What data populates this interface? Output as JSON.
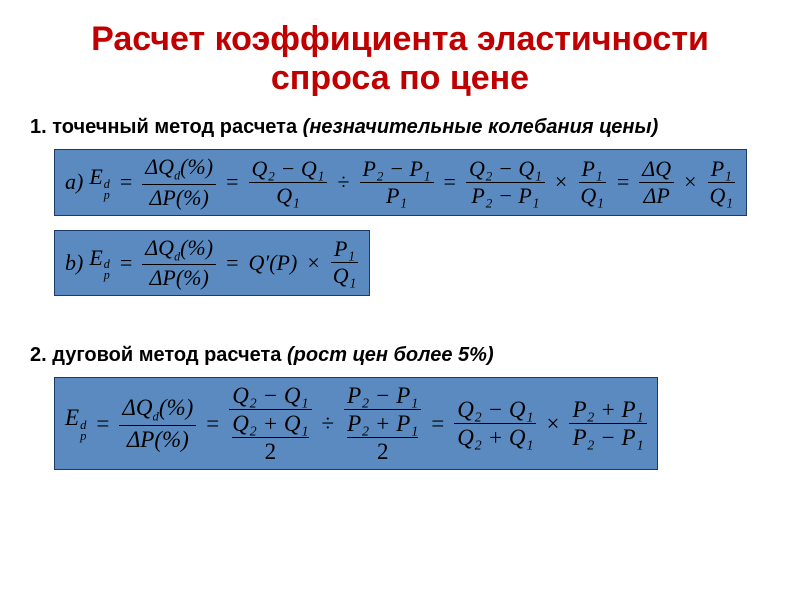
{
  "title": {
    "text": "Расчет коэффициента эластичности спроса по цене",
    "color": "#c00000",
    "fontsize": 34
  },
  "section1": {
    "number": "1.",
    "bold_text": "точечный метод расчета",
    "italic_text": "(незначительные колебания цены)",
    "fontsize": 20
  },
  "formula_a": {
    "bg": "#5b8ac0",
    "prefix": "a)",
    "lhs_base": "E",
    "lhs_sup": "d",
    "lhs_sub": "p",
    "eq": "=",
    "f1_num": "ΔQ",
    "f1_num_sub": "d",
    "f1_num_pct": "(%)",
    "f1_den": "ΔP(%)",
    "f2_num": "Q₂ − Q₁",
    "f2_den": "Q₁",
    "div": "÷",
    "f3_num": "P₂ − P₁",
    "f3_den": "P₁",
    "f4_num": "Q₂ − Q₁",
    "f4_den": "P₂ − P₁",
    "times": "×",
    "f5_num": "P₁",
    "f5_den": "Q₁",
    "f6_num": "ΔQ",
    "f6_den": "ΔP",
    "f7_num": "P₁",
    "f7_den": "Q₁"
  },
  "formula_b": {
    "bg": "#5b8ac0",
    "prefix": "b)",
    "lhs_base": "E",
    "lhs_sup": "d",
    "lhs_sub": "p",
    "eq": "=",
    "f1_num": "ΔQ",
    "f1_num_sub": "d",
    "f1_num_pct": "(%)",
    "f1_den": "ΔP(%)",
    "qprime": "Q′(P)",
    "times": "×",
    "f2_num": "P₁",
    "f2_den": "Q₁"
  },
  "section2": {
    "number": "2.",
    "bold_text": "дуговой метод расчета",
    "italic_text": "(рост цен более 5%)",
    "fontsize": 20
  },
  "formula_c": {
    "bg": "#5b8ac0",
    "lhs_base": "E",
    "lhs_sup": "d",
    "lhs_sub": "p",
    "eq": "=",
    "f1_num": "ΔQ",
    "f1_num_sub": "d",
    "f1_num_pct": "(%)",
    "f1_den": "ΔP(%)",
    "f2_top": "Q₂ − Q₁",
    "f2_mid": "Q₂ + Q₁",
    "f2_bot": "2",
    "div": "÷",
    "f3_top": "P₂ − P₁",
    "f3_mid": "P₂ + P₁",
    "f3_bot": "2",
    "f4_num": "Q₂ − Q₁",
    "f4_den": "Q₂ + Q₁",
    "times": "×",
    "f5_num": "P₂ + P₁",
    "f5_den": "P₂ − P₁"
  }
}
